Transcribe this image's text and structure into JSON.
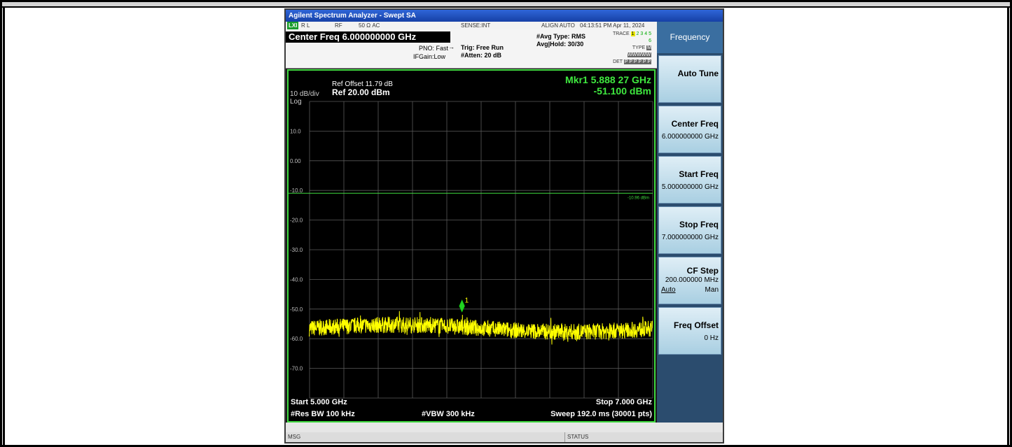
{
  "window": {
    "title": "Agilent Spectrum Analyzer - Swept SA"
  },
  "status": {
    "lxi": "LXI",
    "rl": "R L",
    "rf": "RF",
    "impedance": "50 Ω  AC",
    "sense": "SENSE:INT",
    "align": "ALIGN AUTO",
    "datetime": "04:13:51 PM Apr 11, 2024"
  },
  "measurement": {
    "center_freq": "Center Freq 6.000000000 GHz",
    "pno": "PNO: Fast",
    "ifgain": "IFGain:Low",
    "trig": "Trig: Free Run",
    "atten": "#Atten: 20 dB",
    "avg_type": "#Avg Type: RMS",
    "avg_hold": "Avg|Hold: 30/30",
    "trace_label": "TRACE",
    "type_label": "TYPE",
    "det_label": "DET",
    "trace_nums": [
      "1",
      "2",
      "3",
      "4",
      "5",
      "6"
    ],
    "type_val": "M WWWWW",
    "det_val": "P P P P P P"
  },
  "display": {
    "ref_offset": "Ref Offset 11.79 dB",
    "ref_level": "Ref 20.00 dBm",
    "scale": "10 dB/div",
    "log": "Log",
    "marker_freq": "Mkr1 5.888 27 GHz",
    "marker_amp": "-51.100 dBm",
    "marker_id": "1",
    "limit_label": "-10.96 dBm",
    "y_ticks": [
      "10.0",
      "0.00",
      "-10.0",
      "-20.0",
      "-30.0",
      "-40.0",
      "-50.0",
      "-60.0",
      "-70.0"
    ],
    "start": "Start 5.000 GHz",
    "stop": "Stop 7.000 GHz",
    "rbw": "#Res BW 100 kHz",
    "vbw": "#VBW 300 kHz",
    "sweep": "Sweep  192.0 ms (30001 pts)"
  },
  "chart_data": {
    "type": "line",
    "xlim": [
      5.0,
      7.0
    ],
    "ylim": [
      -80,
      20
    ],
    "grid": true,
    "marker": {
      "x": 5.88827,
      "y": -51.1
    },
    "limit_line": -10.96,
    "noise_floor": -56.5
  },
  "softkeys": {
    "menu_title": "Frequency",
    "auto_tune": "Auto Tune",
    "center_freq_label": "Center Freq",
    "center_freq_value": "6.000000000 GHz",
    "start_freq_label": "Start Freq",
    "start_freq_value": "5.000000000 GHz",
    "stop_freq_label": "Stop Freq",
    "stop_freq_value": "7.000000000 GHz",
    "cf_step_label": "CF Step",
    "cf_step_value": "200.000000 MHz",
    "cf_step_auto": "Auto",
    "cf_step_man": "Man",
    "freq_offset_label": "Freq Offset",
    "freq_offset_value": "0 Hz"
  },
  "footer": {
    "msg": "MSG",
    "status": "STATUS"
  },
  "colors": {
    "trace": "#ffff00",
    "grid": "#5a5a5a",
    "marker_text": "#3fe83f",
    "limit": "#3fd93f"
  }
}
